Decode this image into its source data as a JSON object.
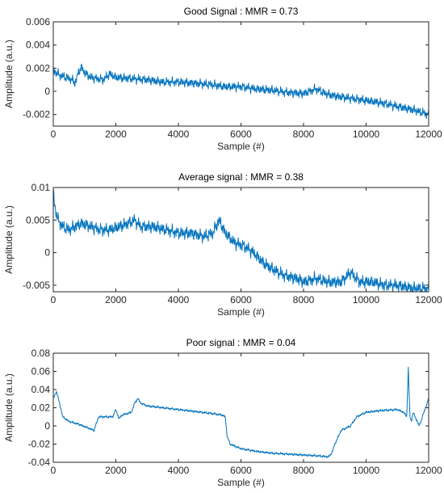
{
  "colors": {
    "series": "#0072BD",
    "axes": "#262626",
    "background": "#ffffff"
  },
  "chart_data": [
    {
      "type": "line",
      "title": "Good Signal : MMR = 0.73",
      "xlabel": "Sample (#)",
      "ylabel": "Amplitude (a.u.)",
      "xlim": [
        0,
        12000
      ],
      "ylim": [
        -0.003,
        0.006
      ],
      "xticks": [
        0,
        2000,
        4000,
        6000,
        8000,
        10000,
        12000
      ],
      "yticks": [
        -0.002,
        0,
        0.002,
        0.004,
        0.006
      ],
      "xtick_labels": [
        "0",
        "2000",
        "4000",
        "6000",
        "8000",
        "10000",
        "12000"
      ],
      "ytick_labels": [
        "-0.002",
        "0",
        "0.002",
        "0.004",
        "0.006"
      ],
      "grid": false,
      "series": [
        {
          "x": [
            0,
            200,
            400,
            600,
            700,
            800,
            900,
            1000,
            1200,
            1400,
            1600,
            1800,
            2000,
            2500,
            3000,
            3500,
            4000,
            4500,
            5000,
            5500,
            6000,
            6500,
            7000,
            7500,
            8000,
            8400,
            8700,
            9000,
            9500,
            10000,
            10500,
            11000,
            11500,
            12000
          ],
          "y": [
            0.0018,
            0.0014,
            0.0012,
            0.001,
            0.0007,
            0.0016,
            0.0021,
            0.0016,
            0.0012,
            0.0011,
            0.001,
            0.0015,
            0.0012,
            0.0011,
            0.001,
            0.0008,
            0.0008,
            0.0007,
            0.0006,
            0.0004,
            0.0004,
            0.0002,
            0.0001,
            -0.0001,
            -0.0002,
            0.0002,
            -0.0002,
            -0.0004,
            -0.0006,
            -0.0008,
            -0.001,
            -0.0013,
            -0.0016,
            -0.002
          ],
          "ripple": 0.00045
        }
      ]
    },
    {
      "type": "line",
      "title": "Average signal : MMR = 0.38",
      "xlabel": "Sample (#)",
      "ylabel": "Amplitude (a.u.)",
      "xlim": [
        0,
        12000
      ],
      "ylim": [
        -0.006,
        0.01
      ],
      "xticks": [
        0,
        2000,
        4000,
        6000,
        8000,
        10000,
        12000
      ],
      "yticks": [
        -0.005,
        0,
        0.005,
        0.01
      ],
      "xtick_labels": [
        "0",
        "2000",
        "4000",
        "6000",
        "8000",
        "10000",
        "12000"
      ],
      "ytick_labels": [
        "-0.005",
        "0",
        "0.005",
        "0.01"
      ],
      "grid": false,
      "series": [
        {
          "x": [
            0,
            50,
            150,
            300,
            500,
            700,
            900,
            1200,
            1500,
            1800,
            2100,
            2400,
            2600,
            2800,
            3200,
            3600,
            4000,
            4400,
            4800,
            5100,
            5300,
            5500,
            5800,
            6100,
            6400,
            6700,
            7000,
            7400,
            7800,
            8000,
            8400,
            8800,
            9200,
            9500,
            9800,
            10200,
            10600,
            11000,
            11500,
            12000
          ],
          "y": [
            0.0095,
            0.007,
            0.005,
            0.004,
            0.0035,
            0.004,
            0.0045,
            0.004,
            0.0035,
            0.0035,
            0.004,
            0.0045,
            0.005,
            0.004,
            0.004,
            0.0035,
            0.003,
            0.003,
            0.0025,
            0.003,
            0.005,
            0.003,
            0.0015,
            0.001,
            0.0,
            -0.0015,
            -0.0025,
            -0.0035,
            -0.004,
            -0.0045,
            -0.004,
            -0.0045,
            -0.0045,
            -0.003,
            -0.0045,
            -0.0045,
            -0.005,
            -0.005,
            -0.0055,
            -0.0055
          ],
          "ripple": 0.0011
        }
      ]
    },
    {
      "type": "line",
      "title": "Poor signal : MMR = 0.04",
      "xlabel": "Sample (#)",
      "ylabel": "Amplitude (a.u.)",
      "xlim": [
        0,
        12000
      ],
      "ylim": [
        -0.04,
        0.08
      ],
      "xticks": [
        0,
        2000,
        4000,
        6000,
        8000,
        10000,
        12000
      ],
      "yticks": [
        -0.04,
        -0.02,
        0,
        0.02,
        0.04,
        0.06,
        0.08
      ],
      "xtick_labels": [
        "0",
        "2000",
        "4000",
        "6000",
        "8000",
        "10000",
        "12000"
      ],
      "ytick_labels": [
        "-0.04",
        "-0.02",
        "0",
        "0.02",
        "0.04",
        "0.06",
        "0.08"
      ],
      "grid": false,
      "series": [
        {
          "x": [
            0,
            100,
            200,
            300,
            500,
            800,
            1100,
            1300,
            1400,
            1450,
            1600,
            1900,
            2000,
            2100,
            2200,
            2500,
            2600,
            2700,
            2800,
            3000,
            3500,
            4000,
            4500,
            5000,
            5400,
            5500,
            5550,
            5650,
            6000,
            6500,
            7000,
            7500,
            8000,
            8500,
            8800,
            8900,
            9000,
            9200,
            9500,
            9700,
            10000,
            10500,
            11000,
            11200,
            11300,
            11350,
            11400,
            11450,
            11500,
            11700,
            11900,
            12000
          ],
          "y": [
            0.03,
            0.038,
            0.025,
            0.01,
            0.005,
            0.002,
            -0.002,
            -0.005,
            0.005,
            0.01,
            0.01,
            0.01,
            0.018,
            0.008,
            0.012,
            0.015,
            0.025,
            0.03,
            0.025,
            0.022,
            0.02,
            0.018,
            0.016,
            0.014,
            0.012,
            0.01,
            -0.01,
            -0.02,
            -0.025,
            -0.028,
            -0.03,
            -0.031,
            -0.032,
            -0.033,
            -0.034,
            -0.03,
            -0.02,
            -0.005,
            0.0,
            0.01,
            0.015,
            0.017,
            0.018,
            0.015,
            0.01,
            0.065,
            0.01,
            0.005,
            0.015,
            0.0,
            0.02,
            0.03
          ],
          "ripple": 0.0015
        }
      ]
    }
  ]
}
